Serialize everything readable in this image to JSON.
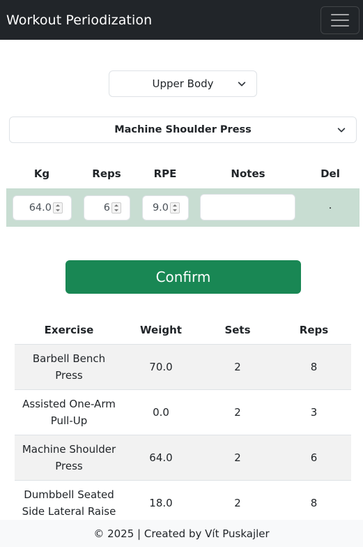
{
  "navbar": {
    "title": "Workout Periodization",
    "toggle_icon": "hamburger-icon"
  },
  "day_select": {
    "value": "Upper Body"
  },
  "exercise_select": {
    "value": "Machine Shoulder Press"
  },
  "set_table": {
    "headers": [
      "Kg",
      "Reps",
      "RPE",
      "Notes",
      "Del"
    ],
    "row": {
      "kg": "64.0",
      "reps": "6",
      "rpe": "9.0",
      "notes": "",
      "del": "."
    }
  },
  "confirm_label": "Confirm",
  "history": {
    "headers": [
      "Exercise",
      "Weight",
      "Sets",
      "Reps"
    ],
    "rows": [
      {
        "exercise": "Barbell Bench Press",
        "weight": "70.0",
        "sets": "2",
        "reps": "8"
      },
      {
        "exercise": "Assisted One-Arm Pull-Up",
        "weight": "0.0",
        "sets": "2",
        "reps": "3"
      },
      {
        "exercise": "Machine Shoulder Press",
        "weight": "64.0",
        "sets": "2",
        "reps": "6"
      },
      {
        "exercise": "Dumbbell Seated Side Lateral Raise",
        "weight": "18.0",
        "sets": "2",
        "reps": "8"
      },
      {
        "exercise": "",
        "weight": "",
        "sets": "",
        "reps": ""
      }
    ]
  },
  "footer": {
    "text": "© 2025 | Created by Vít Puskajler"
  },
  "colors": {
    "navbar": "#212529",
    "confirm": "#198754",
    "set_row": "#c8ddd2",
    "stripe": "#f2f2f2"
  }
}
